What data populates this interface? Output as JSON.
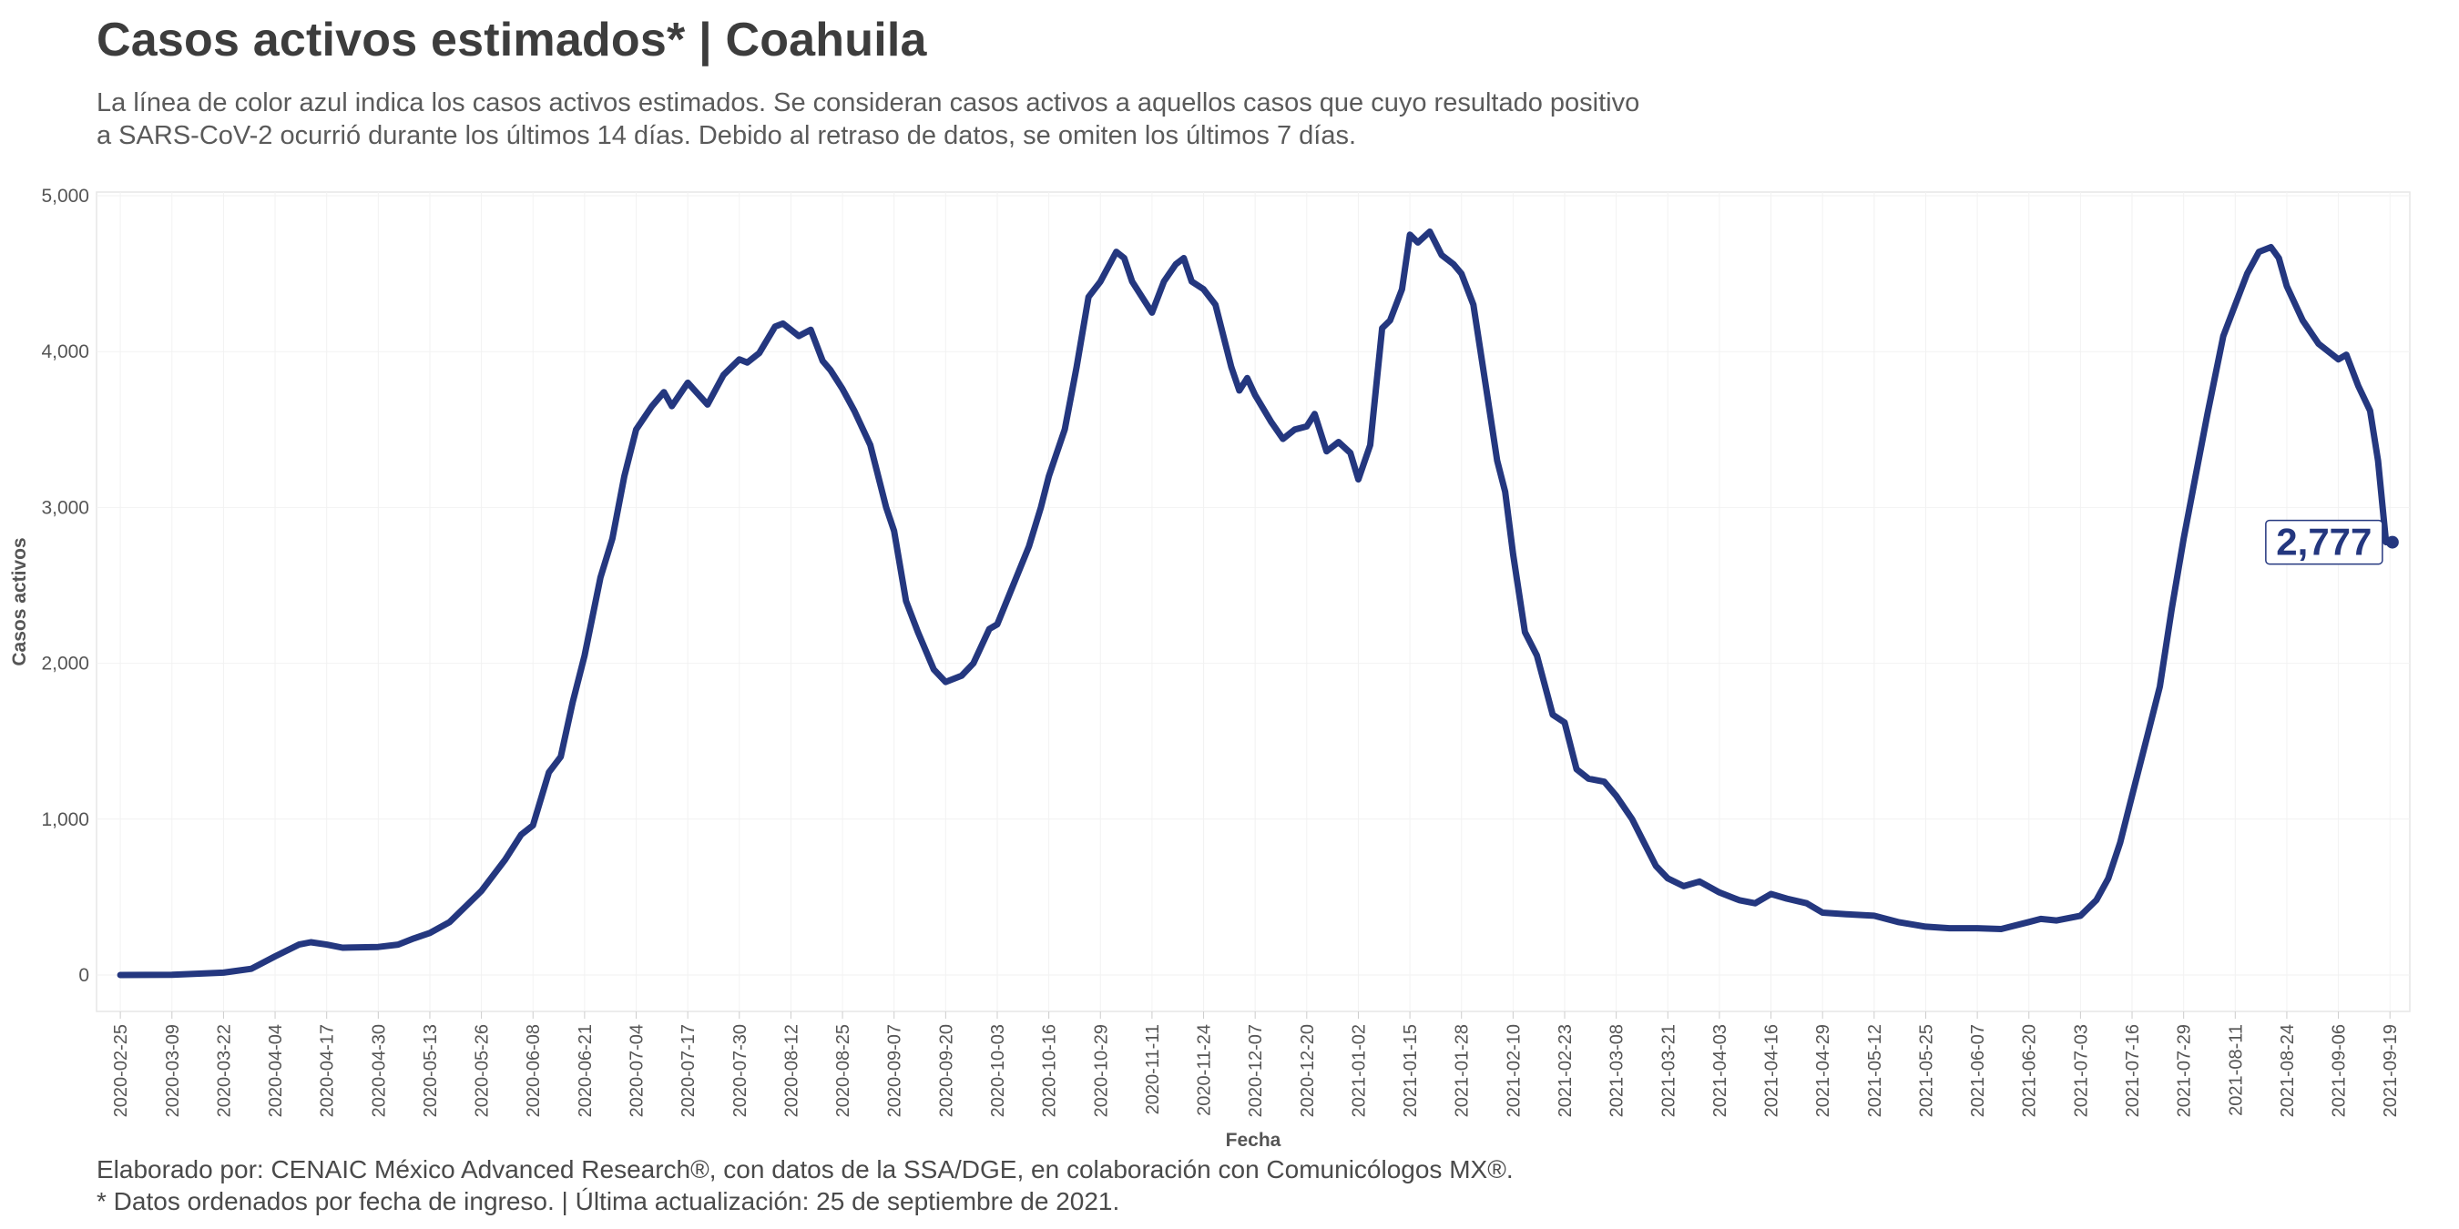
{
  "title": "Casos activos estimados* | Coahuila",
  "subtitle": [
    "La línea de color azul indica los casos activos estimados. Se consideran casos activos a aquellos casos que cuyo resultado positivo",
    "a SARS-CoV-2 ocurrió durante los últimos 14 días. Debido al retraso de datos, se omiten los últimos 7 días."
  ],
  "footer": [
    "Elaborado por: CENAIC México Advanced Research®, con datos de la SSA/DGE, en colaboración con Comunicólogos MX®.",
    "* Datos ordenados por fecha de ingreso. | Última actualización: 25 de septiembre de 2021."
  ],
  "chart_data": {
    "type": "line",
    "xlabel": "Fecha",
    "ylabel": "Casos activos",
    "ylim": [
      0,
      5000
    ],
    "y_ticks": [
      0,
      1000,
      2000,
      3000,
      4000,
      5000
    ],
    "y_tick_labels": [
      "0",
      "1,000",
      "2,000",
      "3,000",
      "4,000",
      "5,000"
    ],
    "x_range": [
      "2020-02-19",
      "2021-09-24"
    ],
    "x_ticks": [
      "2020-02-25",
      "2020-03-09",
      "2020-03-22",
      "2020-04-04",
      "2020-04-17",
      "2020-04-30",
      "2020-05-13",
      "2020-05-26",
      "2020-06-08",
      "2020-06-21",
      "2020-07-04",
      "2020-07-17",
      "2020-07-30",
      "2020-08-12",
      "2020-08-25",
      "2020-09-07",
      "2020-09-20",
      "2020-10-03",
      "2020-10-16",
      "2020-10-29",
      "2020-11-11",
      "2020-11-24",
      "2020-12-07",
      "2020-12-20",
      "2021-01-02",
      "2021-01-15",
      "2021-01-28",
      "2021-02-10",
      "2021-02-23",
      "2021-03-08",
      "2021-03-21",
      "2021-04-03",
      "2021-04-16",
      "2021-04-29",
      "2021-05-12",
      "2021-05-25",
      "2021-06-07",
      "2021-06-20",
      "2021-07-03",
      "2021-07-16",
      "2021-07-29",
      "2021-08-11",
      "2021-08-24",
      "2021-09-06",
      "2021-09-19"
    ],
    "grid": true,
    "legend": "none",
    "color": "#24377f",
    "end_label": "2,777",
    "series": [
      {
        "points": [
          [
            "2020-02-25",
            0
          ],
          [
            "2020-03-09",
            2
          ],
          [
            "2020-03-22",
            15
          ],
          [
            "2020-03-29",
            40
          ],
          [
            "2020-04-04",
            120
          ],
          [
            "2020-04-10",
            195
          ],
          [
            "2020-04-13",
            210
          ],
          [
            "2020-04-17",
            195
          ],
          [
            "2020-04-21",
            175
          ],
          [
            "2020-04-30",
            180
          ],
          [
            "2020-05-05",
            195
          ],
          [
            "2020-05-09",
            235
          ],
          [
            "2020-05-13",
            270
          ],
          [
            "2020-05-18",
            340
          ],
          [
            "2020-05-26",
            540
          ],
          [
            "2020-06-01",
            740
          ],
          [
            "2020-06-05",
            900
          ],
          [
            "2020-06-08",
            960
          ],
          [
            "2020-06-12",
            1300
          ],
          [
            "2020-06-15",
            1400
          ],
          [
            "2020-06-18",
            1750
          ],
          [
            "2020-06-21",
            2050
          ],
          [
            "2020-06-25",
            2550
          ],
          [
            "2020-06-28",
            2800
          ],
          [
            "2020-07-01",
            3200
          ],
          [
            "2020-07-04",
            3500
          ],
          [
            "2020-07-08",
            3650
          ],
          [
            "2020-07-11",
            3740
          ],
          [
            "2020-07-13",
            3650
          ],
          [
            "2020-07-17",
            3800
          ],
          [
            "2020-07-22",
            3660
          ],
          [
            "2020-07-26",
            3850
          ],
          [
            "2020-07-30",
            3950
          ],
          [
            "2020-08-01",
            3930
          ],
          [
            "2020-08-04",
            3990
          ],
          [
            "2020-08-08",
            4160
          ],
          [
            "2020-08-10",
            4180
          ],
          [
            "2020-08-14",
            4100
          ],
          [
            "2020-08-17",
            4140
          ],
          [
            "2020-08-20",
            3940
          ],
          [
            "2020-08-22",
            3880
          ],
          [
            "2020-08-25",
            3760
          ],
          [
            "2020-08-28",
            3620
          ],
          [
            "2020-09-01",
            3400
          ],
          [
            "2020-09-05",
            3000
          ],
          [
            "2020-09-07",
            2850
          ],
          [
            "2020-09-10",
            2400
          ],
          [
            "2020-09-13",
            2200
          ],
          [
            "2020-09-17",
            1960
          ],
          [
            "2020-09-20",
            1880
          ],
          [
            "2020-09-24",
            1920
          ],
          [
            "2020-09-27",
            2000
          ],
          [
            "2020-10-01",
            2220
          ],
          [
            "2020-10-03",
            2250
          ],
          [
            "2020-10-07",
            2500
          ],
          [
            "2020-10-11",
            2750
          ],
          [
            "2020-10-14",
            3000
          ],
          [
            "2020-10-16",
            3200
          ],
          [
            "2020-10-20",
            3500
          ],
          [
            "2020-10-23",
            3900
          ],
          [
            "2020-10-26",
            4350
          ],
          [
            "2020-10-29",
            4450
          ],
          [
            "2020-11-02",
            4640
          ],
          [
            "2020-11-04",
            4600
          ],
          [
            "2020-11-06",
            4450
          ],
          [
            "2020-11-11",
            4250
          ],
          [
            "2020-11-14",
            4450
          ],
          [
            "2020-11-17",
            4560
          ],
          [
            "2020-11-19",
            4600
          ],
          [
            "2020-11-21",
            4450
          ],
          [
            "2020-11-24",
            4400
          ],
          [
            "2020-11-27",
            4300
          ],
          [
            "2020-12-01",
            3900
          ],
          [
            "2020-12-03",
            3750
          ],
          [
            "2020-12-05",
            3830
          ],
          [
            "2020-12-07",
            3720
          ],
          [
            "2020-12-11",
            3550
          ],
          [
            "2020-12-14",
            3440
          ],
          [
            "2020-12-17",
            3500
          ],
          [
            "2020-12-20",
            3520
          ],
          [
            "2020-12-22",
            3600
          ],
          [
            "2020-12-25",
            3360
          ],
          [
            "2020-12-28",
            3420
          ],
          [
            "2020-12-31",
            3350
          ],
          [
            "2021-01-02",
            3180
          ],
          [
            "2021-01-05",
            3400
          ],
          [
            "2021-01-08",
            4150
          ],
          [
            "2021-01-10",
            4200
          ],
          [
            "2021-01-13",
            4400
          ],
          [
            "2021-01-15",
            4750
          ],
          [
            "2021-01-17",
            4700
          ],
          [
            "2021-01-20",
            4770
          ],
          [
            "2021-01-23",
            4620
          ],
          [
            "2021-01-26",
            4560
          ],
          [
            "2021-01-28",
            4500
          ],
          [
            "2021-01-31",
            4300
          ],
          [
            "2021-02-03",
            3800
          ],
          [
            "2021-02-06",
            3300
          ],
          [
            "2021-02-08",
            3100
          ],
          [
            "2021-02-10",
            2700
          ],
          [
            "2021-02-13",
            2200
          ],
          [
            "2021-02-16",
            2050
          ],
          [
            "2021-02-20",
            1670
          ],
          [
            "2021-02-23",
            1620
          ],
          [
            "2021-02-26",
            1320
          ],
          [
            "2021-03-01",
            1260
          ],
          [
            "2021-03-05",
            1240
          ],
          [
            "2021-03-08",
            1150
          ],
          [
            "2021-03-12",
            1000
          ],
          [
            "2021-03-15",
            850
          ],
          [
            "2021-03-18",
            700
          ],
          [
            "2021-03-21",
            620
          ],
          [
            "2021-03-25",
            570
          ],
          [
            "2021-03-29",
            600
          ],
          [
            "2021-04-03",
            530
          ],
          [
            "2021-04-08",
            480
          ],
          [
            "2021-04-12",
            460
          ],
          [
            "2021-04-16",
            520
          ],
          [
            "2021-04-20",
            490
          ],
          [
            "2021-04-25",
            460
          ],
          [
            "2021-04-29",
            400
          ],
          [
            "2021-05-05",
            390
          ],
          [
            "2021-05-12",
            380
          ],
          [
            "2021-05-18",
            340
          ],
          [
            "2021-05-25",
            310
          ],
          [
            "2021-05-31",
            300
          ],
          [
            "2021-06-07",
            300
          ],
          [
            "2021-06-13",
            295
          ],
          [
            "2021-06-20",
            340
          ],
          [
            "2021-06-23",
            360
          ],
          [
            "2021-06-27",
            350
          ],
          [
            "2021-07-03",
            380
          ],
          [
            "2021-07-07",
            480
          ],
          [
            "2021-07-10",
            620
          ],
          [
            "2021-07-13",
            850
          ],
          [
            "2021-07-16",
            1150
          ],
          [
            "2021-07-20",
            1550
          ],
          [
            "2021-07-23",
            1850
          ],
          [
            "2021-07-26",
            2350
          ],
          [
            "2021-07-29",
            2800
          ],
          [
            "2021-08-01",
            3200
          ],
          [
            "2021-08-04",
            3600
          ],
          [
            "2021-08-08",
            4100
          ],
          [
            "2021-08-11",
            4300
          ],
          [
            "2021-08-14",
            4500
          ],
          [
            "2021-08-17",
            4640
          ],
          [
            "2021-08-20",
            4670
          ],
          [
            "2021-08-22",
            4600
          ],
          [
            "2021-08-24",
            4420
          ],
          [
            "2021-08-28",
            4200
          ],
          [
            "2021-09-01",
            4050
          ],
          [
            "2021-09-06",
            3950
          ],
          [
            "2021-09-08",
            3980
          ],
          [
            "2021-09-11",
            3780
          ],
          [
            "2021-09-14",
            3620
          ],
          [
            "2021-09-16",
            3300
          ],
          [
            "2021-09-18",
            2777
          ]
        ]
      }
    ]
  }
}
